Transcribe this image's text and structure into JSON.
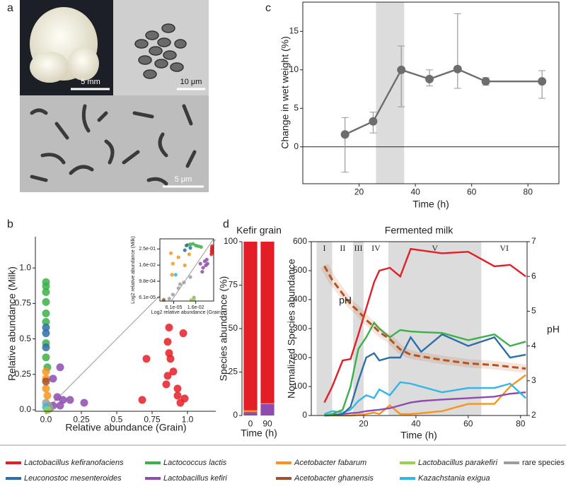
{
  "panel_a": {
    "label": "a",
    "scale_bars": [
      "5 mm",
      "10 μm",
      "5 μm"
    ]
  },
  "legend": [
    {
      "name": "Lactobacillus kefiranofaciens",
      "color": "#e41e26",
      "style": "italic"
    },
    {
      "name": "Lactococcus lactis",
      "color": "#3cb04a",
      "style": "italic"
    },
    {
      "name": "Acetobacter fabarum",
      "color": "#f7941e",
      "style": "italic"
    },
    {
      "name": "Lactobacillus parakefiri",
      "color": "#9bd14e",
      "style": "italic"
    },
    {
      "name": "rare species",
      "color": "#9d9d9d",
      "style": "normal"
    },
    {
      "name": "Leuconostoc mesenteroides",
      "color": "#2e6ea6",
      "style": "italic"
    },
    {
      "name": "Lactobacillus kefiri",
      "color": "#8e4cae",
      "style": "italic"
    },
    {
      "name": "Acetobacter ghanensis",
      "color": "#a0522d",
      "style": "italic"
    },
    {
      "name": "Kazachstania exigua",
      "color": "#30b7ea",
      "style": "italic"
    }
  ],
  "chart_data": [
    {
      "type": "scatter",
      "panel": "b",
      "x_label": "Relative abundance (Grain)",
      "y_label": "Relative abundance (Milk)",
      "xlim": [
        -0.075,
        1.2
      ],
      "ylim": [
        -0.01,
        1.22
      ],
      "xticks": [
        {
          "value": 0,
          "label": "0.0"
        },
        0.25,
        0.5,
        0.75,
        {
          "value": 1,
          "label": "1.0"
        }
      ],
      "yticks": [
        {
          "value": 0,
          "label": "0.0"
        },
        0.25,
        0.5,
        0.75,
        {
          "value": 1,
          "label": "1.0"
        }
      ],
      "reference_line": true,
      "series": [
        {
          "color": "#3cb04a",
          "x": [
            0,
            0,
            0,
            0,
            0,
            0,
            0,
            0,
            0.01
          ],
          "y": [
            0.9,
            0.87,
            0.83,
            0.76,
            0.68,
            0.62,
            0.47,
            0.37,
            0.3
          ]
        },
        {
          "color": "#2e6ea6",
          "x": [
            0,
            0,
            0
          ],
          "y": [
            0.58,
            0.54,
            0.44
          ]
        },
        {
          "color": "#f7941e",
          "x": [
            0,
            0,
            0,
            0.01
          ],
          "y": [
            0.27,
            0.22,
            0.15,
            0.1
          ]
        },
        {
          "color": "#a0522d",
          "x": [
            0
          ],
          "y": [
            0.2
          ]
        },
        {
          "color": "#8e4cae",
          "x": [
            0.1,
            0.05,
            0.08,
            0.12,
            0.17,
            0.27,
            0.05,
            0.03,
            0.1
          ],
          "y": [
            0.3,
            0.22,
            0.09,
            0.07,
            0.07,
            0.05,
            0.03,
            0.02,
            0.03
          ]
        },
        {
          "color": "#e41e26",
          "x": [
            0.68,
            0.71,
            0.86,
            0.87,
            0.88,
            0.86,
            0.85,
            0.9,
            0.93,
            0.93,
            0.95,
            0.97,
            0.98,
            0.87
          ],
          "y": [
            0.07,
            0.36,
            0.48,
            0.4,
            0.36,
            0.24,
            0.18,
            0.27,
            0.15,
            0.1,
            0.05,
            0.54,
            0.08,
            0.58
          ]
        },
        {
          "color": "#9d9d9d",
          "x": [
            0.02,
            0.01,
            0,
            0.03
          ],
          "y": [
            0.03,
            0,
            0.05,
            0.01
          ]
        },
        {
          "color": "#30b7ea",
          "x": [
            0
          ],
          "y": [
            0.02
          ]
        },
        {
          "color": "#9bd14e",
          "x": [
            0.01
          ],
          "y": [
            0
          ]
        }
      ]
    },
    {
      "type": "scatter",
      "x_label": "Log2 relative abundance (Grain)",
      "y_label": "Log2 relative abundance (Milk)",
      "log_scale": true,
      "xlim": [
        1.9e-06,
        1.41
      ],
      "ylim": [
        3.3e-05,
        1.41
      ],
      "xticks": [
        {
          "value": 6.1e-05,
          "label": "6.1e-05"
        },
        {
          "value": 0.0156,
          "label": "1.6e-02"
        }
      ],
      "yticks": [
        {
          "value": 0.25,
          "label": "2.5e-01"
        },
        {
          "value": 0.0156,
          "label": "1.6e-02"
        },
        {
          "value": 0.000977,
          "label": "9.8e-04"
        },
        {
          "value": 6.1e-05,
          "label": "6.1e-05"
        }
      ],
      "reference_line": true,
      "series": [
        {
          "color": "#3cb04a",
          "x": [
            0.002,
            0.004,
            0.008,
            0.016,
            0.03,
            0.06
          ],
          "y": [
            0.5,
            0.55,
            0.6,
            0.45,
            0.4,
            0.35
          ]
        },
        {
          "color": "#2e6ea6",
          "x": [
            0.0015,
            0.004,
            0.001
          ],
          "y": [
            0.45,
            0.3,
            0.2
          ]
        },
        {
          "color": "#f7941e",
          "x": [
            3e-05,
            5e-05,
            0.0002,
            0.001,
            0.003,
            4e-05
          ],
          "y": [
            0.12,
            0.02,
            0.06,
            0.015,
            0.1,
            0.003
          ]
        },
        {
          "color": "#8e4cae",
          "x": [
            0.05,
            0.1,
            0.15,
            0.2,
            0.3,
            0.25,
            0.08
          ],
          "y": [
            0.02,
            0.01,
            0.03,
            0.015,
            0.02,
            0.04,
            0.005
          ]
        },
        {
          "color": "#9d9d9d",
          "x": [
            2e-05,
            5e-05,
            0.0002,
            0.0008,
            0.004,
            0.01,
            0.0003
          ],
          "y": [
            5e-05,
            0.0001,
            0.0003,
            0.0008,
            0.002,
            6e-05,
            0.0006
          ]
        },
        {
          "color": "#a0522d",
          "x": [
            5e-06
          ],
          "y": [
            4e-05
          ]
        },
        {
          "color": "#9bd14e",
          "x": [
            0.005,
            0.01
          ],
          "y": [
            4e-05,
            4e-05
          ]
        },
        {
          "color": "#30b7ea",
          "x": [
            0.0001
          ],
          "y": [
            0.003
          ]
        },
        {
          "color": "#e41e26",
          "x": [
            0.9,
            0.85,
            0.95,
            0.8,
            0.92,
            0.88
          ],
          "y": [
            0.25,
            0.18,
            0.4,
            0.1,
            0.3,
            0.14
          ]
        }
      ]
    },
    {
      "type": "line",
      "panel": "c",
      "x_label": "Time (h)",
      "y_label": "Change in wet weight (%)",
      "xlim": [
        0,
        91
      ],
      "ylim": [
        -4.8,
        18.8
      ],
      "xticks": [
        20,
        40,
        60,
        80
      ],
      "yticks": [
        0,
        5,
        10,
        15
      ],
      "zero_line": true,
      "shade": [
        [
          26,
          36
        ]
      ],
      "x": [
        15,
        25,
        35,
        45,
        55,
        65,
        85
      ],
      "series": [
        {
          "color": "#6d6d6d",
          "values": [
            1.6,
            3.3,
            10,
            8.8,
            10.1,
            8.5,
            8.5
          ],
          "lower": [
            -3.3,
            1.8,
            5.2,
            7.9,
            7.6,
            8,
            6.3
          ],
          "upper": [
            3.8,
            4.5,
            13.1,
            10,
            17.3,
            9,
            9.9
          ]
        }
      ]
    },
    {
      "type": "stacked_bar",
      "panel": "d",
      "title": "Kefir grain",
      "x_label": "Time (h)",
      "y_label": "Species abundance (%)",
      "ylim": [
        0,
        100
      ],
      "yticks": [
        0,
        25,
        50,
        75,
        100
      ],
      "categories": [
        "0",
        "90"
      ],
      "series": [
        {
          "color": "#8e4cae",
          "values": [
            2,
            6.5
          ]
        },
        {
          "color": "#f7941e",
          "values": [
            1,
            0.5
          ]
        },
        {
          "color": "#e41e26",
          "values": [
            97,
            93
          ]
        }
      ]
    },
    {
      "type": "line",
      "title": "Fermented milk",
      "x_label": "Time (h)",
      "y_label": "Normalized Species abundance",
      "y2_label": "pH",
      "xlim": [
        0,
        82.5
      ],
      "ylim": [
        0,
        600
      ],
      "y2lim": [
        2,
        7
      ],
      "xticks": [
        20,
        40,
        60,
        80
      ],
      "yticks": [
        0,
        100,
        200,
        300,
        400,
        500,
        600
      ],
      "y2ticks": [
        2,
        3,
        4,
        5,
        6,
        7
      ],
      "stages": [
        {
          "label": "I",
          "start": 2,
          "end": 8,
          "shaded": true
        },
        {
          "label": "II",
          "start": 8,
          "end": 16,
          "shaded": false
        },
        {
          "label": "III",
          "start": 16,
          "end": 20,
          "shaded": true
        },
        {
          "label": "IV",
          "start": 20,
          "end": 29.5,
          "shaded": false
        },
        {
          "label": "V",
          "start": 29.5,
          "end": 65,
          "shaded": true
        },
        {
          "label": "VI",
          "start": 65,
          "end": 82.5,
          "shaded": false
        }
      ],
      "annotations": [
        {
          "text": "pH",
          "x": 13,
          "y": 5.3,
          "axis": "y2"
        }
      ],
      "x": [
        5,
        8,
        12,
        15,
        18,
        21,
        24,
        26,
        30,
        34,
        38,
        42,
        50,
        60,
        70,
        76,
        82
      ],
      "series": [
        {
          "color": "#f7941e",
          "values": [
            0,
            0,
            0,
            0,
            2,
            5,
            10,
            5,
            35,
            5,
            5,
            8,
            15,
            40,
            40,
            100,
            140
          ]
        },
        {
          "color": "#8e4cae",
          "values": [
            0,
            2,
            5,
            8,
            10,
            15,
            18,
            20,
            25,
            35,
            45,
            50,
            55,
            60,
            65,
            75,
            80
          ]
        },
        {
          "color": "#30b7ea",
          "values": [
            5,
            15,
            10,
            20,
            50,
            70,
            60,
            90,
            70,
            115,
            110,
            100,
            80,
            95,
            95,
            110,
            60
          ]
        },
        {
          "color": "#2e6ea6",
          "values": [
            0,
            2,
            5,
            30,
            120,
            200,
            215,
            190,
            200,
            200,
            270,
            220,
            280,
            240,
            270,
            200,
            210
          ]
        },
        {
          "color": "#3cb04a",
          "values": [
            0,
            5,
            20,
            100,
            230,
            270,
            320,
            300,
            270,
            295,
            290,
            288,
            285,
            260,
            280,
            240,
            255
          ]
        },
        {
          "color": "#e41e26",
          "values": [
            45,
            100,
            190,
            195,
            280,
            370,
            460,
            500,
            510,
            480,
            575,
            570,
            560,
            565,
            515,
            520,
            480
          ]
        },
        {
          "color": "#b5541f",
          "axis": "y2",
          "dashed": true,
          "values": [
            6.3,
            5.9,
            5.5,
            5.2,
            5,
            4.75,
            4.55,
            4.4,
            4.2,
            3.9,
            3.75,
            3.7,
            3.6,
            3.5,
            3.45,
            3.4,
            3.35
          ]
        }
      ]
    }
  ]
}
